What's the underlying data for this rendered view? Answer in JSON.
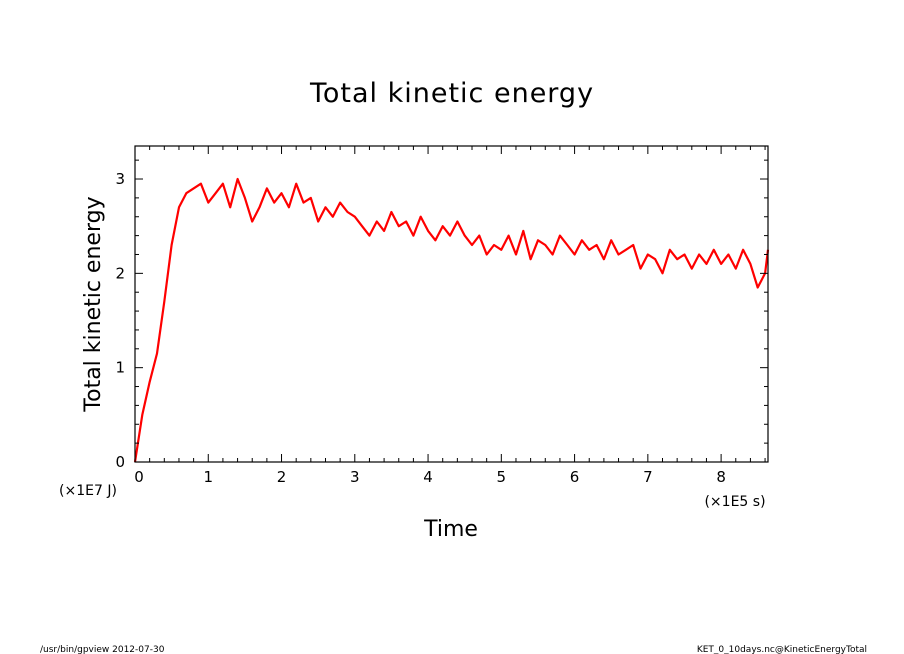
{
  "chart_data": {
    "type": "line",
    "title": "Total kinetic energy",
    "xlabel": "Time",
    "ylabel": "Total kinetic energy",
    "x_unit": "(×1E5 s)",
    "y_unit": "(×1E7 J)",
    "xlim": [
      0,
      8.64
    ],
    "ylim": [
      0,
      3.35
    ],
    "x_ticks": [
      "0",
      "1",
      "2",
      "3",
      "4",
      "5",
      "6",
      "7",
      "8"
    ],
    "y_ticks": [
      "0",
      "1",
      "2",
      "3"
    ],
    "grid": false,
    "legend": "none",
    "series_color": "#ff0000",
    "series": [
      {
        "x": [
          0,
          0.1,
          0.2,
          0.3,
          0.4,
          0.5,
          0.6,
          0.7,
          0.8,
          0.9,
          1.0,
          1.1,
          1.2,
          1.3,
          1.4,
          1.5,
          1.6,
          1.7,
          1.8,
          1.9,
          2.0,
          2.1,
          2.2,
          2.3,
          2.4,
          2.5,
          2.6,
          2.7,
          2.8,
          2.9,
          3.0,
          3.1,
          3.2,
          3.3,
          3.4,
          3.5,
          3.6,
          3.7,
          3.8,
          3.9,
          4.0,
          4.1,
          4.2,
          4.3,
          4.4,
          4.5,
          4.6,
          4.7,
          4.8,
          4.9,
          5.0,
          5.1,
          5.2,
          5.3,
          5.4,
          5.5,
          5.6,
          5.7,
          5.8,
          5.9,
          6.0,
          6.1,
          6.2,
          6.3,
          6.4,
          6.5,
          6.6,
          6.7,
          6.8,
          6.9,
          7.0,
          7.1,
          7.2,
          7.3,
          7.4,
          7.5,
          7.6,
          7.7,
          7.8,
          7.9,
          8.0,
          8.1,
          8.2,
          8.3,
          8.4,
          8.5,
          8.6,
          8.64
        ],
        "y": [
          0.0,
          0.5,
          0.85,
          1.15,
          1.7,
          2.3,
          2.7,
          2.85,
          2.9,
          2.95,
          2.75,
          2.85,
          2.95,
          2.7,
          3.0,
          2.8,
          2.55,
          2.7,
          2.9,
          2.75,
          2.85,
          2.7,
          2.95,
          2.75,
          2.8,
          2.55,
          2.7,
          2.6,
          2.75,
          2.65,
          2.6,
          2.5,
          2.4,
          2.55,
          2.45,
          2.65,
          2.5,
          2.55,
          2.4,
          2.6,
          2.45,
          2.35,
          2.5,
          2.4,
          2.55,
          2.4,
          2.3,
          2.4,
          2.2,
          2.3,
          2.25,
          2.4,
          2.2,
          2.45,
          2.15,
          2.35,
          2.3,
          2.2,
          2.4,
          2.3,
          2.2,
          2.35,
          2.25,
          2.3,
          2.15,
          2.35,
          2.2,
          2.25,
          2.3,
          2.05,
          2.2,
          2.15,
          2.0,
          2.25,
          2.15,
          2.2,
          2.05,
          2.2,
          2.1,
          2.25,
          2.1,
          2.2,
          2.05,
          2.25,
          2.1,
          1.85,
          2.0,
          2.25
        ]
      }
    ]
  },
  "footer": {
    "left": "/usr/bin/gpview  2012-07-30",
    "right": "KET_0_10days.nc@KineticEnergyTotal"
  }
}
